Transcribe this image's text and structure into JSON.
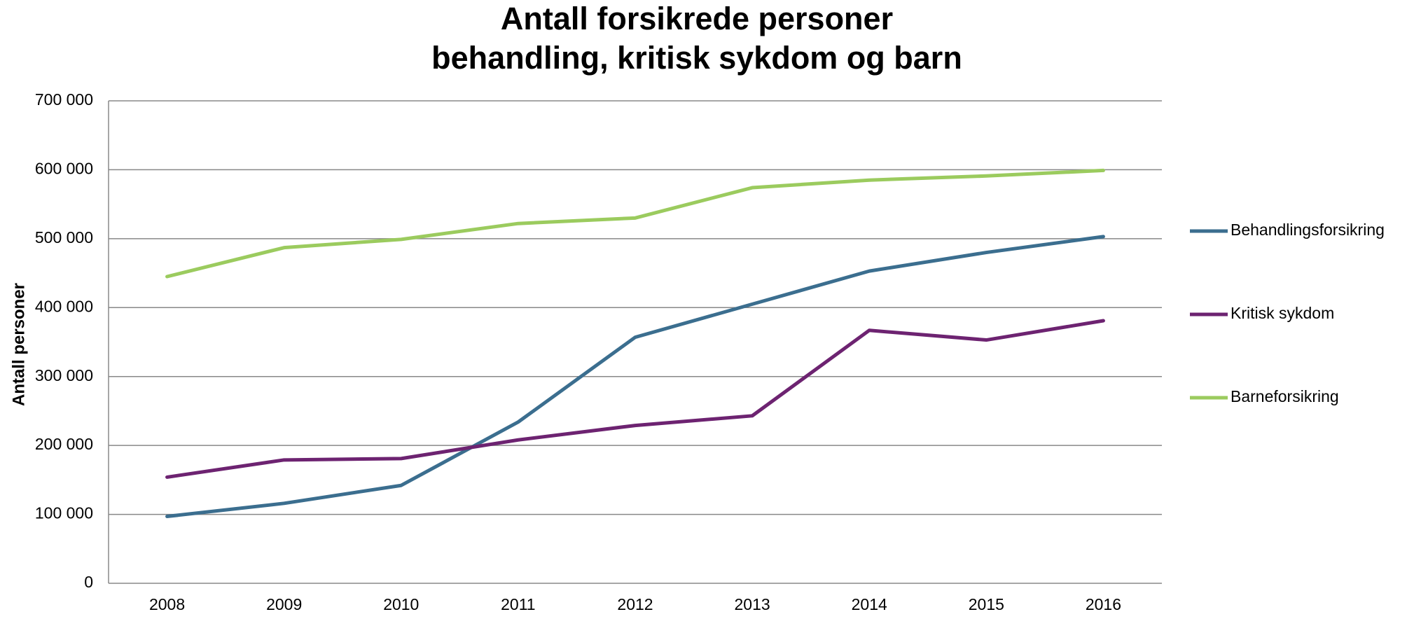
{
  "chart_data": {
    "type": "line",
    "title": [
      "Antall forsikrede personer",
      "behandling, kritisk sykdom og barn"
    ],
    "y_label": "Antall personer",
    "categories": [
      "2008",
      "2009",
      "2010",
      "2011",
      "2012",
      "2013",
      "2014",
      "2015",
      "2016"
    ],
    "series": [
      {
        "name": "Behandlingsforsikring",
        "color": "#3b6e8f",
        "values": [
          97000,
          116000,
          142000,
          234000,
          357000,
          405000,
          453000,
          480000,
          503000
        ]
      },
      {
        "name": "Kritisk sykdom",
        "color": "#6d2371",
        "values": [
          154000,
          179000,
          181000,
          208000,
          229000,
          243000,
          367000,
          353000,
          381000
        ]
      },
      {
        "name": "Barneforsikring",
        "color": "#9bcb5e",
        "values": [
          445000,
          487000,
          499000,
          522000,
          530000,
          574000,
          585000,
          591000,
          599000
        ]
      }
    ],
    "ylim": [
      0,
      700000
    ],
    "yticks": [
      0,
      {
        "value": 100000,
        "label": "100 000"
      },
      {
        "value": 200000,
        "label": "200 000"
      },
      {
        "value": 300000,
        "label": "300 000"
      },
      {
        "value": 400000,
        "label": "400 000"
      },
      {
        "value": 500000,
        "label": "500 000"
      },
      {
        "value": 600000,
        "label": "600 000"
      },
      {
        "value": 700000,
        "label": "700 000"
      }
    ],
    "grid": true,
    "legend": "right"
  }
}
